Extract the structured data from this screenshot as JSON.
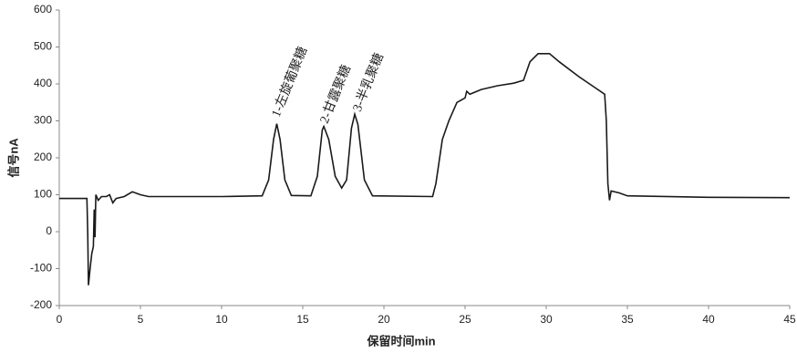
{
  "chart_data": {
    "type": "line",
    "xlabel": "保留时间min",
    "ylabel": "信号nA",
    "annotations": [
      "1-左旋葡聚糖",
      "2-甘露聚糖",
      "3-半乳聚糖"
    ],
    "x": [
      0,
      1.7,
      1.75,
      1.8,
      1.9,
      2.0,
      2.1,
      2.15,
      2.2,
      2.25,
      2.4,
      2.6,
      2.9,
      3.1,
      3.3,
      3.5,
      4.0,
      4.5,
      5.0,
      5.5,
      10,
      12.5,
      12.9,
      13.2,
      13.4,
      13.6,
      13.9,
      14.3,
      15.5,
      15.9,
      16.2,
      16.3,
      16.6,
      17.0,
      17.4,
      17.7,
      18.0,
      18.2,
      18.4,
      18.8,
      19.3,
      23,
      23.2,
      23.6,
      24.0,
      24.5,
      25,
      25.1,
      25.3,
      26,
      27,
      28,
      28.6,
      29,
      29.5,
      30.2,
      30.8,
      32,
      33,
      33.6,
      33.7,
      33.8,
      33.9,
      34.0,
      34.5,
      35,
      40,
      45
    ],
    "values": [
      90,
      90,
      0,
      -145,
      -100,
      -60,
      -40,
      60,
      -15,
      100,
      85,
      95,
      95,
      100,
      78,
      90,
      95,
      108,
      100,
      95,
      95,
      97,
      140,
      250,
      292,
      250,
      140,
      98,
      97,
      150,
      275,
      285,
      250,
      150,
      118,
      140,
      280,
      318,
      290,
      140,
      97,
      95,
      130,
      250,
      300,
      350,
      362,
      380,
      372,
      385,
      395,
      402,
      410,
      460,
      482,
      482,
      460,
      420,
      390,
      372,
      300,
      130,
      85,
      110,
      105,
      97,
      93,
      92
    ],
    "color": "#1a1a1a",
    "xlim": [
      0,
      45
    ],
    "xticks": [
      0,
      5,
      10,
      15,
      20,
      25,
      30,
      35,
      40,
      45
    ],
    "ylim": [
      -200,
      600
    ],
    "yticks": [
      -200,
      -100,
      0,
      100,
      200,
      300,
      400,
      500,
      600
    ],
    "grid": false
  }
}
